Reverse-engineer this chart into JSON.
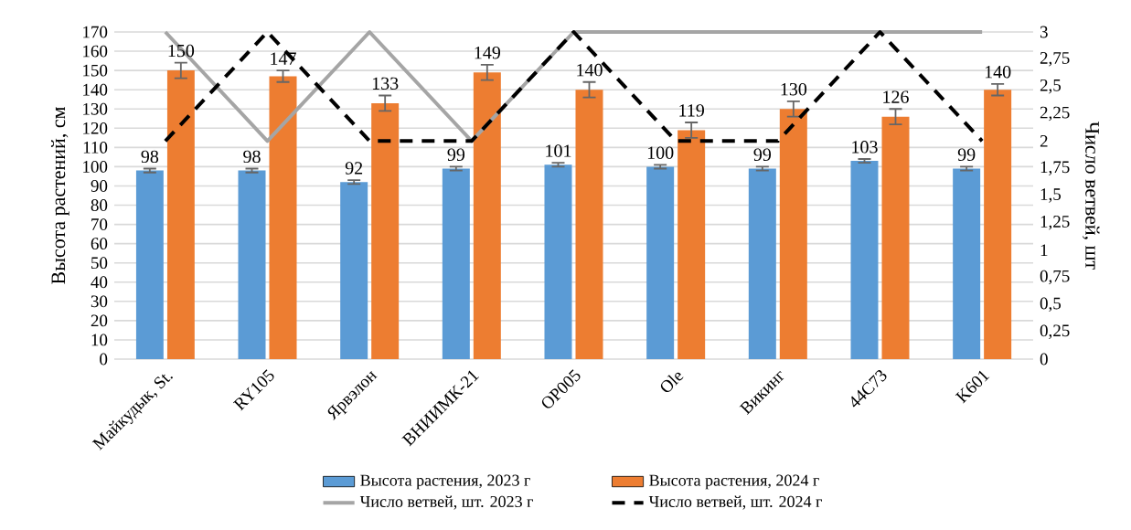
{
  "chart_data": {
    "type": "bar",
    "categories": [
      "Майкудык, St.",
      "RY105",
      "Ярвэлон",
      "ВНИИМК-21",
      "OP005",
      "Ole",
      "Викинг",
      "44C73",
      "K601"
    ],
    "ylabel": "Высота растений, см",
    "y2label": "Число ветвей, шт",
    "ylim": [
      0,
      170
    ],
    "yticks": [
      0,
      10,
      20,
      30,
      40,
      50,
      60,
      70,
      80,
      90,
      100,
      110,
      120,
      130,
      140,
      150,
      160,
      170
    ],
    "y2lim": [
      0,
      3
    ],
    "y2ticks": [
      0,
      {
        "value": 0.25,
        "label": "0,25"
      },
      {
        "value": 0.5,
        "label": "0,5"
      },
      {
        "value": 0.75,
        "label": "0,75"
      },
      1,
      {
        "value": 1.25,
        "label": "1,25"
      },
      {
        "value": 1.5,
        "label": "1,5"
      },
      {
        "value": 1.75,
        "label": "1,75"
      },
      2,
      {
        "value": 2.25,
        "label": "2,25"
      },
      {
        "value": 2.5,
        "label": "2,5"
      },
      {
        "value": 2.75,
        "label": "2,75"
      },
      3
    ],
    "grid": "y",
    "legend": "bottom",
    "series": [
      {
        "name": "Высота растения, 2023 г",
        "color": "#5b9bd5",
        "values": [
          98,
          98,
          92,
          99,
          101,
          100,
          99,
          103,
          99
        ],
        "errors": [
          1,
          1,
          1,
          1,
          1,
          1,
          1,
          1,
          1
        ],
        "value_labels": [
          "98",
          "98",
          "92",
          "99",
          "101",
          "100",
          "99",
          "103",
          "99"
        ]
      },
      {
        "name": "Высота растения, 2024 г",
        "color": "#ed7d31",
        "values": [
          150,
          147,
          133,
          149,
          140,
          119,
          130,
          126,
          140
        ],
        "errors": [
          4,
          3,
          4,
          4,
          4,
          4,
          4,
          4,
          3
        ],
        "value_labels": [
          "150",
          "147",
          "133",
          "149",
          "140",
          "119",
          "130",
          "126",
          "140"
        ]
      },
      {
        "name": "Число ветвей, шт. 2023 г",
        "type": "line",
        "axis": "y2",
        "color": "#a5a5a5",
        "line_style": "solid",
        "marker": "none",
        "values": [
          3,
          2,
          3,
          2,
          3,
          3,
          3,
          3,
          3
        ]
      },
      {
        "name": "Число ветвей, шт. 2024 г",
        "type": "line",
        "axis": "y2",
        "color": "#000000",
        "line_style": "dashed",
        "marker": "none",
        "values": [
          2,
          3,
          2,
          2,
          3,
          2,
          2,
          3,
          2
        ]
      }
    ]
  }
}
